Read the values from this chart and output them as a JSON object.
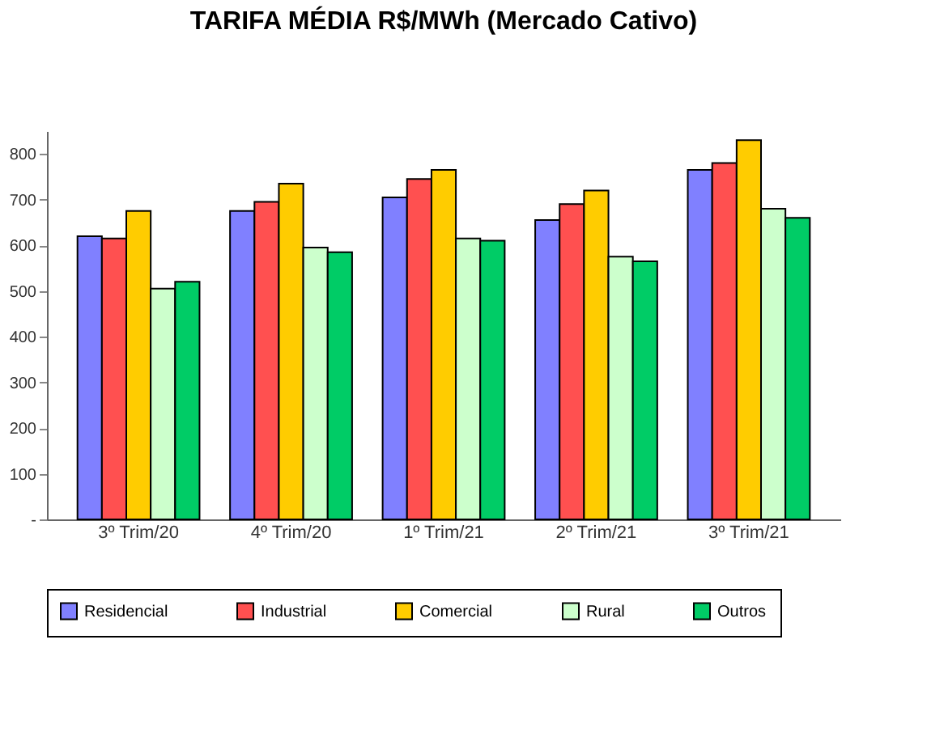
{
  "chart_data": {
    "type": "bar",
    "title": "TARIFA MÉDIA R$/MWh (Mercado Cativo)",
    "categories": [
      "3º Trim/20",
      "4º Trim/20",
      "1º Trim/21",
      "2º Trim/21",
      "3º Trim/21"
    ],
    "series": [
      {
        "name": "Residencial",
        "color": "#8080ff",
        "values": [
          620,
          675,
          705,
          655,
          765
        ]
      },
      {
        "name": "Industrial",
        "color": "#ff5050",
        "values": [
          615,
          695,
          745,
          690,
          780
        ]
      },
      {
        "name": "Comercial",
        "color": "#ffcc00",
        "values": [
          675,
          735,
          765,
          720,
          830
        ]
      },
      {
        "name": "Rural",
        "color": "#ccffcc",
        "values": [
          505,
          595,
          615,
          575,
          680
        ]
      },
      {
        "name": "Outros",
        "color": "#00cc66",
        "values": [
          520,
          585,
          610,
          565,
          660
        ]
      }
    ],
    "ylim": [
      0,
      850
    ],
    "yticks": [
      {
        "value": 0,
        "label": "-"
      },
      100,
      200,
      300,
      400,
      500,
      600,
      700,
      800
    ],
    "grid": false,
    "legend": "bottom"
  }
}
